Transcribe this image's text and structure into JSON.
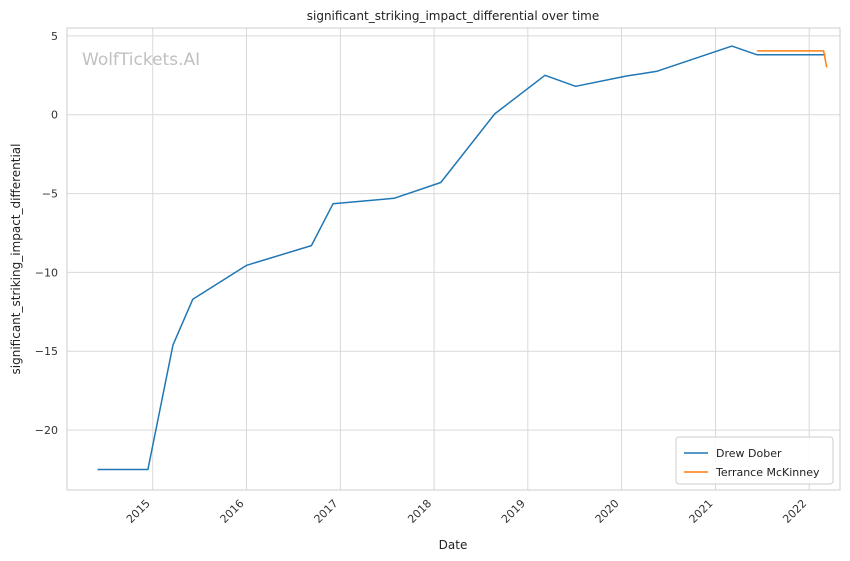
{
  "watermark": "WolfTickets.AI",
  "chart_data": {
    "type": "line",
    "title": "significant_striking_impact_differential over time",
    "xlabel": "Date",
    "ylabel": "significant_striking_impact_differential",
    "x_ticks": [
      "2015",
      "2016",
      "2017",
      "2018",
      "2019",
      "2020",
      "2021",
      "2022"
    ],
    "y_ticks": [
      5,
      0,
      -5,
      -10,
      -15,
      -20
    ],
    "xlim": [
      "2014-02-01",
      "2022-05-01"
    ],
    "ylim": [
      -23.8,
      5.5
    ],
    "grid": true,
    "legend_position": "bottom-right",
    "series": [
      {
        "name": "Drew Dober",
        "color": "#1f77b4",
        "points": [
          [
            "2014-05-31",
            -22.5
          ],
          [
            "2014-12-13",
            -22.5
          ],
          [
            "2015-03-21",
            -14.6
          ],
          [
            "2015-06-06",
            -11.7
          ],
          [
            "2016-01-02",
            -9.55
          ],
          [
            "2016-09-10",
            -8.3
          ],
          [
            "2016-12-03",
            -5.65
          ],
          [
            "2017-07-29",
            -5.3
          ],
          [
            "2018-01-27",
            -4.3
          ],
          [
            "2018-08-25",
            0.05
          ],
          [
            "2019-03-09",
            2.5
          ],
          [
            "2019-07-06",
            1.8
          ],
          [
            "2020-01-18",
            2.45
          ],
          [
            "2020-05-16",
            2.75
          ],
          [
            "2021-03-06",
            4.35
          ],
          [
            "2021-06-12",
            3.8
          ],
          [
            "2022-03-05",
            3.8
          ]
        ]
      },
      {
        "name": "Terrance McKinney",
        "color": "#ff7f0e",
        "points": [
          [
            "2021-06-12",
            4.05
          ],
          [
            "2022-02-26",
            4.05
          ],
          [
            "2022-03-10",
            3.0
          ]
        ]
      }
    ]
  }
}
